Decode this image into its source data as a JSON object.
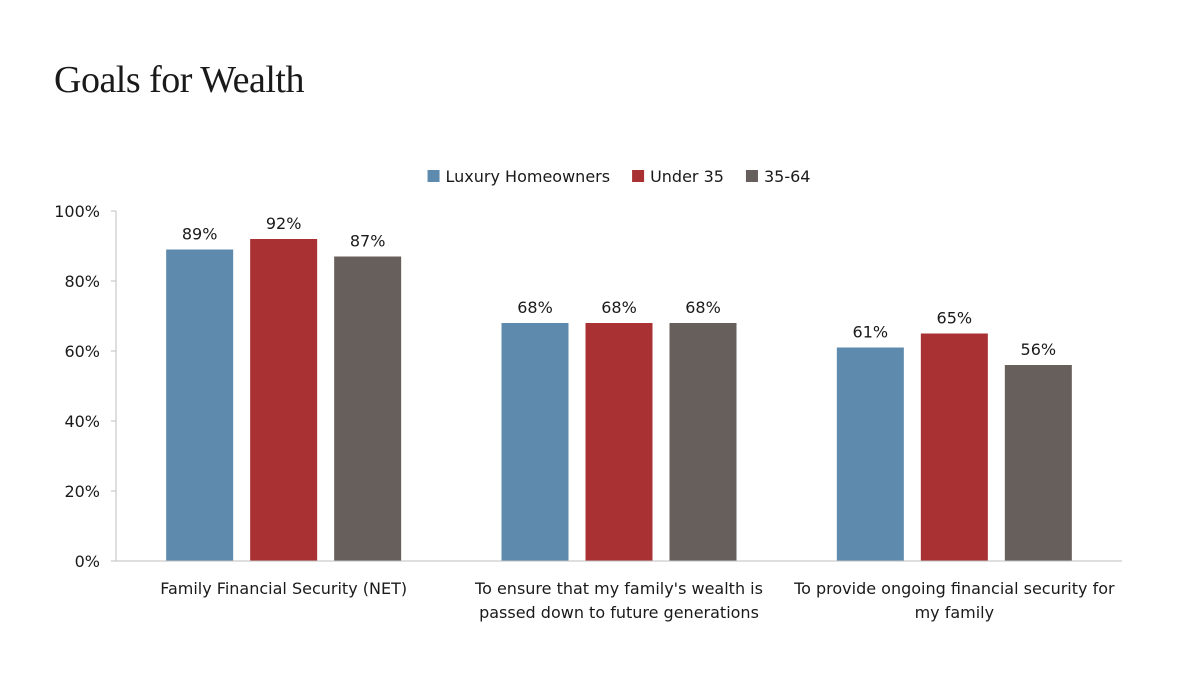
{
  "page": {
    "title": "Goals for Wealth"
  },
  "chart_data": {
    "type": "bar",
    "title": "",
    "xlabel": "",
    "ylabel": "",
    "ylim": [
      0,
      100
    ],
    "yticks": [
      "0%",
      "20%",
      "40%",
      "60%",
      "80%",
      "100%"
    ],
    "grid": false,
    "legend_position": "top-center",
    "categories": [
      [
        "Family Financial Security (NET)"
      ],
      [
        "To ensure that my family's wealth is",
        "passed down to future generations"
      ],
      [
        "To provide ongoing financial security for",
        "my family"
      ]
    ],
    "series": [
      {
        "name": "Luxury Homeowners",
        "color": "#5E8BAD",
        "values": [
          89,
          68,
          61
        ],
        "labels": [
          "89%",
          "68%",
          "61%"
        ]
      },
      {
        "name": "Under 35",
        "color": "#A93033",
        "values": [
          92,
          68,
          65
        ],
        "labels": [
          "92%",
          "68%",
          "65%"
        ]
      },
      {
        "name": "35-64",
        "color": "#675F5B",
        "values": [
          87,
          68,
          56
        ],
        "labels": [
          "87%",
          "68%",
          "56%"
        ]
      }
    ]
  }
}
